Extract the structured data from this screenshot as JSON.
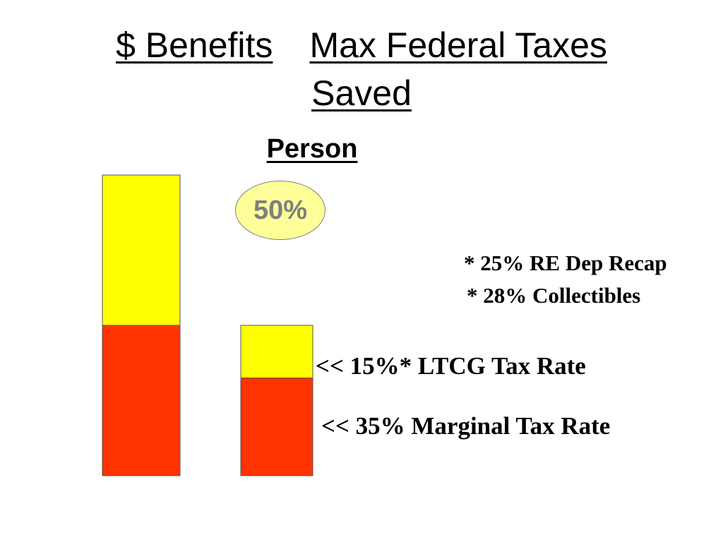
{
  "title": {
    "part1": "$ Benefits",
    "part2": "Max Federal Taxes",
    "line2": "Saved"
  },
  "subtitle": "Person",
  "badge": {
    "text": "50%"
  },
  "notes": [
    "* 25% RE Dep Recap",
    "* 28% Collectibles"
  ],
  "bar_labels": {
    "ltcg": "<< 15%* LTCG Tax Rate",
    "marginal": "<< 35% Marginal Tax Rate"
  },
  "chart_data": {
    "type": "bar",
    "stacked": true,
    "title": "",
    "xlabel": "",
    "ylabel": "",
    "categories": [
      "",
      ""
    ],
    "series": [
      {
        "values": [
          1.0,
          0.65
        ]
      },
      {
        "values": [
          1.0,
          0.35
        ]
      }
    ]
  },
  "colors": {
    "lower_segment": "#ff3300",
    "upper_segment": "#ffff00",
    "badge_fill": "#ffff99",
    "badge_text": "#7f7f7f",
    "outline": "#555555"
  }
}
